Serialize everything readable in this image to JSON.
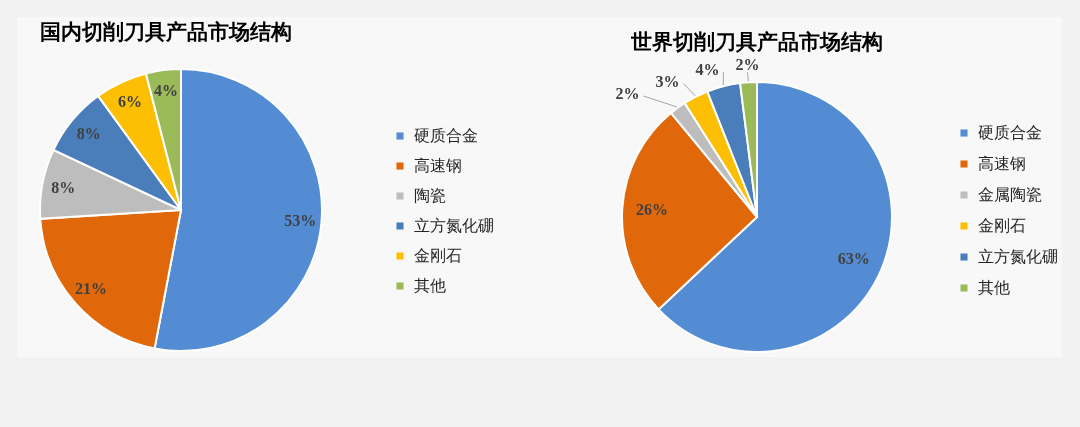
{
  "chart_data": [
    {
      "type": "pie",
      "title": "国内切削刀具产品市场结构",
      "categories": [
        "硬质合金",
        "高速钢",
        "陶瓷",
        "立方氮化硼",
        "金刚石",
        "其他"
      ],
      "values": [
        53,
        21,
        8,
        8,
        6,
        4
      ],
      "value_labels": [
        "53%",
        "21%",
        "8%",
        "8%",
        "6%",
        "4%"
      ],
      "colors": [
        "#538cd3",
        "#e0680a",
        "#bdbdbd",
        "#4a7ebb",
        "#fcbf04",
        "#9bbb59"
      ],
      "legend": "right"
    },
    {
      "type": "pie",
      "title": "世界切削刀具产品市场结构",
      "categories": [
        "硬质合金",
        "高速钢",
        "金属陶瓷",
        "金刚石",
        "立方氮化硼",
        "其他"
      ],
      "values": [
        63,
        26,
        2,
        3,
        4,
        2
      ],
      "value_labels": [
        "63%",
        "26%",
        "2%",
        "3%",
        "4%",
        "2%"
      ],
      "colors": [
        "#538cd3",
        "#e0680a",
        "#bdbdbd",
        "#fcbf04",
        "#4a7ebb",
        "#9bbb59"
      ],
      "legend": "right"
    }
  ]
}
